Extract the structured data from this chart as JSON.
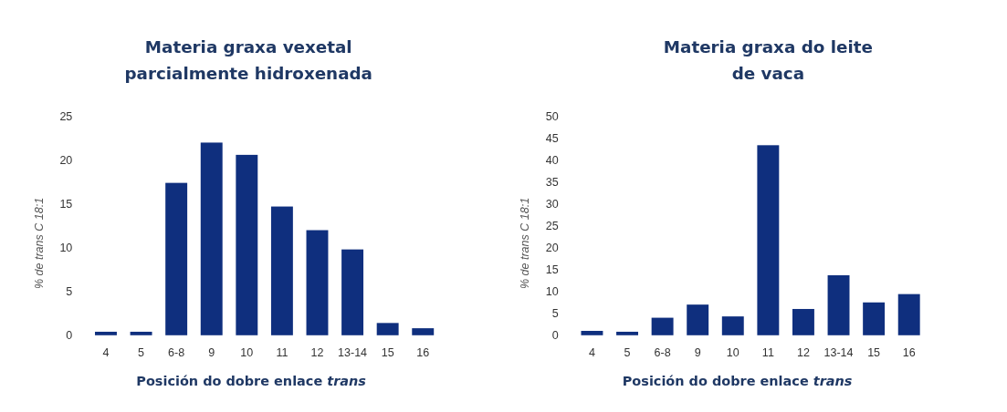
{
  "chart_data": [
    {
      "type": "bar",
      "title": "Materia graxa vexetal\nparcialmente hidroxenada",
      "xlabel": "Posición do dobre enlace trans",
      "ylabel": "% de trans C 18:1",
      "categories": [
        "4",
        "5",
        "6-8",
        "9",
        "10",
        "11",
        "12",
        "13-14",
        "15",
        "16"
      ],
      "values": [
        0.4,
        0.4,
        17.4,
        22.0,
        20.6,
        14.7,
        12.0,
        9.8,
        1.4,
        0.8
      ],
      "color": "#0f2f7e",
      "ylim": [
        0,
        25
      ],
      "yticks": [
        0,
        5,
        10,
        15,
        20,
        25
      ],
      "grid": false
    },
    {
      "type": "bar",
      "title": "Materia graxa do leite\nde vaca",
      "xlabel": "Posición do dobre enlace trans",
      "ylabel": "% de trans C 18:1",
      "categories": [
        "4",
        "5",
        "6-8",
        "9",
        "10",
        "11",
        "12",
        "13-14",
        "15",
        "16"
      ],
      "values": [
        1.0,
        0.8,
        4.0,
        7.0,
        4.3,
        43.4,
        6.0,
        13.7,
        7.5,
        9.4
      ],
      "color": "#0f2f7e",
      "ylim": [
        0,
        50
      ],
      "yticks": [
        0,
        5,
        10,
        15,
        20,
        25,
        30,
        35,
        40,
        45,
        50
      ],
      "grid": false
    }
  ]
}
